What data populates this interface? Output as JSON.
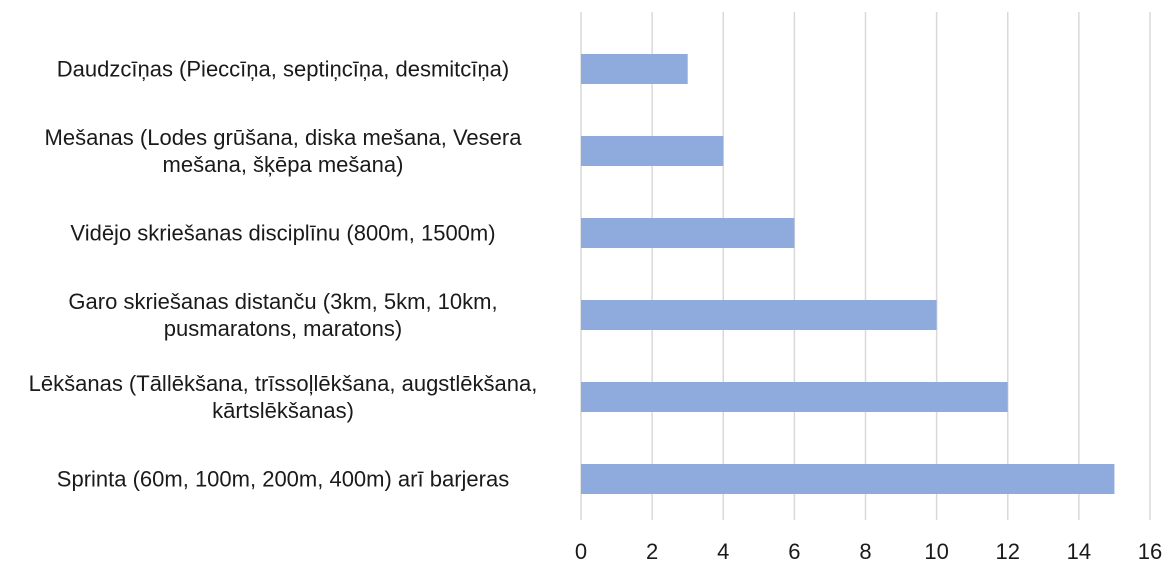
{
  "chart_data": {
    "type": "hbar",
    "categories": [
      "Daudzcīņas (Pieccīņa, septiņcīņa, desmitcīņa)",
      "Mešanas (Lodes grūšana, diska mešana, Vesera mešana, šķēpa mešana)",
      "Vidējo skriešanas disciplīnu (800m, 1500m)",
      "Garo skriešanas distanču (3km, 5km, 10km, pusmaratons, maratons)",
      "Lēkšanas (Tāllēkšana, trīssoļlēkšana, augstlēkšana, kārtslēkšanas)",
      "Sprinta (60m, 100m, 200m, 400m) arī barjeras"
    ],
    "values": [
      3,
      4,
      6,
      10,
      12,
      15
    ],
    "color": "#8faadc",
    "xlim": [
      0,
      16
    ],
    "xticks": [
      0,
      2,
      4,
      6,
      8,
      10,
      12,
      14,
      16
    ],
    "grid": true
  }
}
